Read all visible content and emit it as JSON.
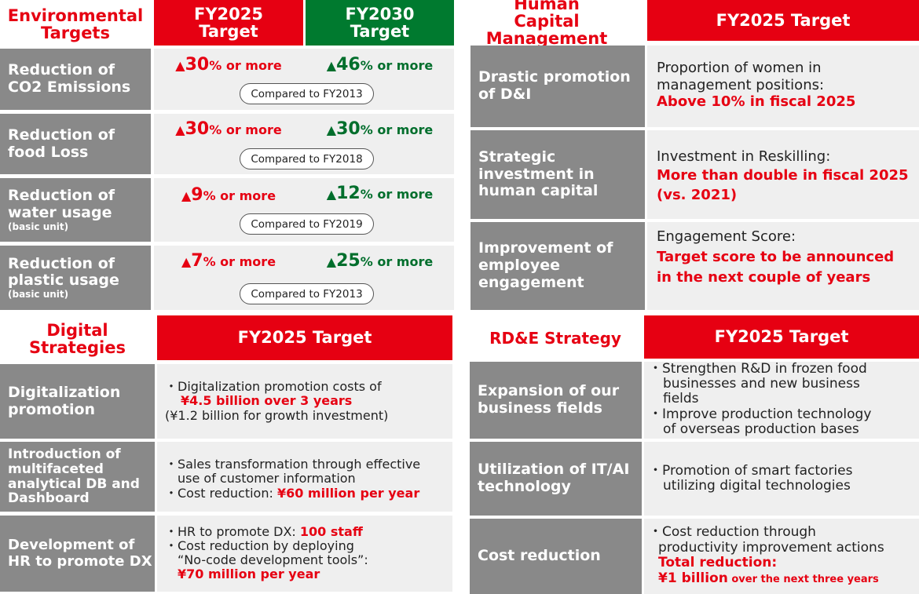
{
  "env": {
    "title": "Environmental Targets",
    "col_fy2025": "FY2025 Target",
    "col_fy2030": "FY2030 Target",
    "rows": [
      {
        "label": "Reduction of CO2 Emissions",
        "sub": "",
        "fy2025_sym": "▲",
        "fy2025_num": "30",
        "fy2025_suffix": "% or more",
        "fy2030_sym": "▲",
        "fy2030_num": "46",
        "fy2030_suffix": "% or more",
        "compared": "Compared to FY2013"
      },
      {
        "label": "Reduction of food Loss",
        "sub": "",
        "fy2025_sym": "▲",
        "fy2025_num": "30",
        "fy2025_suffix": "% or more",
        "fy2030_sym": "▲",
        "fy2030_num": "30",
        "fy2030_suffix": "% or more",
        "compared": "Compared to FY2018"
      },
      {
        "label": "Reduction of water usage",
        "sub": "(basic unit)",
        "fy2025_sym": "▲",
        "fy2025_num": "9",
        "fy2025_suffix": "% or more",
        "fy2030_sym": "▲",
        "fy2030_num": "12",
        "fy2030_suffix": "% or more",
        "compared": "Compared to FY2019"
      },
      {
        "label": "Reduction of plastic usage",
        "sub": "(basic unit)",
        "fy2025_sym": "▲",
        "fy2025_num": "7",
        "fy2025_suffix": "% or more",
        "fy2030_sym": "▲ ",
        "fy2030_num": "25",
        "fy2030_suffix": "% or more",
        "compared": "Compared to FY2013"
      }
    ]
  },
  "hc": {
    "title": "Human Capital Management",
    "col": "FY2025 Target",
    "rows": [
      {
        "label": "Drastic promotion of D&I",
        "text": "Proportion of women in management positions:",
        "highlight": "Above 10% in fiscal 2025"
      },
      {
        "label": "Strategic investment in human capital",
        "text": "Investment in Reskilling:",
        "highlight": "More than double in fiscal 2025 (vs. 2021)"
      },
      {
        "label": "Improvement of employee engagement",
        "text": "Engagement Score:",
        "highlight": "Target score to be announced in the next couple of years"
      }
    ]
  },
  "ds": {
    "title": "Digital Strategies",
    "col": "FY2025 Target",
    "rows": [
      {
        "label": "Digitalization promotion",
        "l1": "・Digitalization promotion costs of",
        "l2": "¥4.5 billion over 3 years",
        "l3": "(¥1.2 billion for growth investment)"
      },
      {
        "label": "Introduction of multifaceted analytical DB and Dashboard",
        "l1": "・Sales transformation through effective",
        "l2": "use of customer information",
        "l3a": "・Cost reduction: ",
        "l3b": "¥60 million per year"
      },
      {
        "label": "Development of HR to promote DX",
        "l1a": "・HR to promote DX: ",
        "l1b": "100 staff",
        "l2": "・Cost reduction by deploying",
        "l3": "“No-code development tools”:",
        "l4": "¥70 million per year"
      }
    ]
  },
  "rd": {
    "title": "RD&E Strategy",
    "col": "FY2025 Target",
    "rows": [
      {
        "label": "Expansion of our business fields",
        "l1": "・Strengthen R&D in frozen food",
        "l2": "businesses and new business",
        "l3": "fields",
        "l4": "・Improve production technology",
        "l5": "of overseas production bases"
      },
      {
        "label": "Utilization of IT/AI technology",
        "l1": "・Promotion of smart factories",
        "l2": "utilizing digital technologies"
      },
      {
        "label": "Cost reduction",
        "l1": "・Cost reduction through",
        "l2": "productivity improvement actions",
        "l3": "Total reduction:",
        "l4a": "¥1 billion",
        "l4b": " over the next three years"
      }
    ]
  }
}
